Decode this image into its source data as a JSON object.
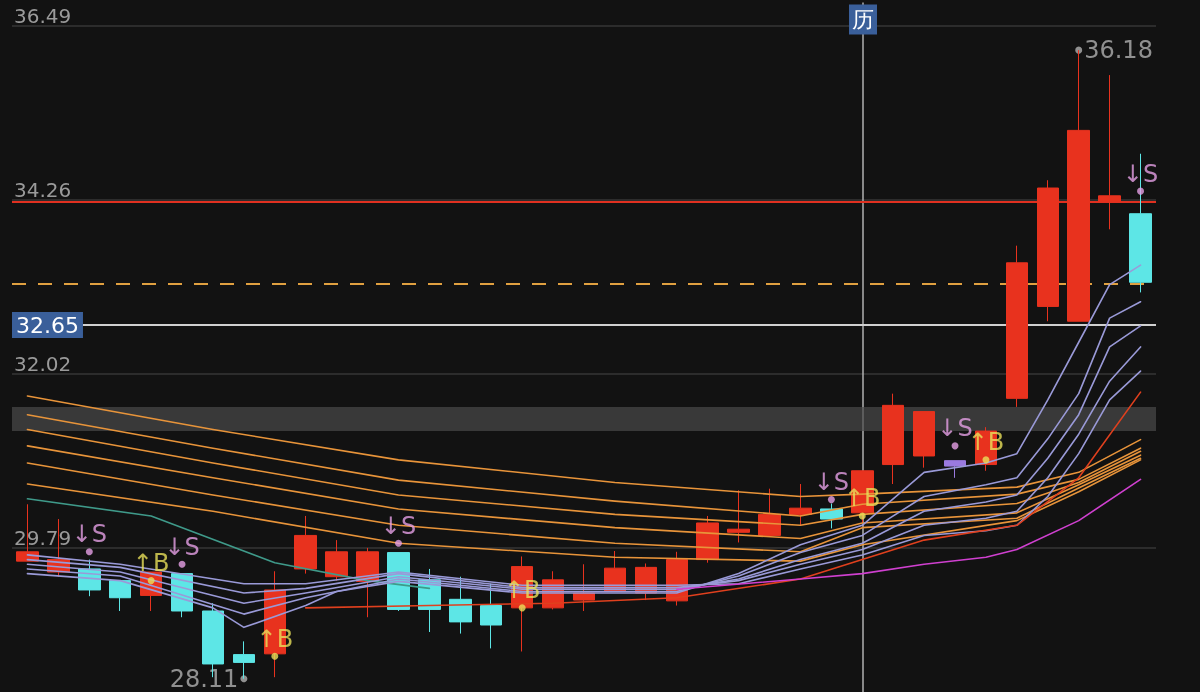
{
  "chart_data": {
    "type": "candlestick",
    "categories": [
      null,
      null,
      null,
      null,
      null,
      null,
      null,
      null,
      null,
      null,
      null,
      null,
      null,
      null,
      null,
      null,
      null,
      null,
      null,
      null,
      null,
      null,
      null,
      null,
      null,
      null,
      null,
      null,
      null,
      null,
      null,
      null,
      null,
      null,
      null,
      null,
      null
    ],
    "ylim": [
      27.94,
      36.49
    ],
    "yticks": [
      29.79,
      32.02,
      34.26,
      36.49
    ],
    "grid": "y",
    "tick_labels": "y",
    "series": [
      {
        "ohlc": [
          [
            29.62,
            30.35,
            29.62,
            29.74
          ],
          [
            29.48,
            30.16,
            29.42,
            29.64
          ],
          [
            29.52,
            29.64,
            29.17,
            29.25
          ],
          [
            29.37,
            29.37,
            28.98,
            29.15
          ],
          [
            29.18,
            29.48,
            28.98,
            29.48
          ],
          [
            29.46,
            29.46,
            28.9,
            28.98
          ],
          [
            28.98,
            29.08,
            28.13,
            28.3
          ],
          [
            28.42,
            28.59,
            28.11,
            28.32
          ],
          [
            28.43,
            29.49,
            28.13,
            29.25
          ],
          [
            29.52,
            30.2,
            29.46,
            29.95
          ],
          [
            29.42,
            29.89,
            29.37,
            29.74
          ],
          [
            29.36,
            29.79,
            28.9,
            29.74
          ],
          [
            29.73,
            29.73,
            28.98,
            29.0
          ],
          [
            29.38,
            29.52,
            28.71,
            29.0
          ],
          [
            29.13,
            29.42,
            28.69,
            28.84
          ],
          [
            29.05,
            29.33,
            28.5,
            28.8
          ],
          [
            29.02,
            29.68,
            28.46,
            29.55
          ],
          [
            29.02,
            29.49,
            29.0,
            29.38
          ],
          [
            29.12,
            29.58,
            28.98,
            29.21
          ],
          [
            29.23,
            29.75,
            29.23,
            29.53
          ],
          [
            29.21,
            29.59,
            29.12,
            29.54
          ],
          [
            29.11,
            29.74,
            29.05,
            29.64
          ],
          [
            29.64,
            30.2,
            29.6,
            30.11
          ],
          [
            29.99,
            30.53,
            29.86,
            30.03
          ],
          [
            29.95,
            30.55,
            29.95,
            30.22
          ],
          [
            30.22,
            30.61,
            30.08,
            30.3
          ],
          [
            30.29,
            30.36,
            30.04,
            30.16
          ],
          [
            30.24,
            30.78,
            30.11,
            30.78
          ],
          [
            30.86,
            31.77,
            30.61,
            31.62
          ],
          [
            30.97,
            31.54,
            30.82,
            31.54
          ],
          [
            30.91,
            30.91,
            30.69,
            30.84
          ],
          [
            30.86,
            31.34,
            30.78,
            31.29
          ],
          [
            31.71,
            33.67,
            31.6,
            33.45
          ],
          [
            32.89,
            34.51,
            32.7,
            34.41
          ],
          [
            32.7,
            36.18,
            32.7,
            35.15
          ],
          [
            34.24,
            35.86,
            33.88,
            34.31
          ],
          [
            34.08,
            34.85,
            33.07,
            33.2
          ]
        ],
        "colors": [
          "#e8321e",
          "#e8321e",
          "#5de6e6",
          "#5de6e6",
          "#e8321e",
          "#5de6e6",
          "#5de6e6",
          "#5de6e6",
          "#e8321e",
          "#e8321e",
          "#e8321e",
          "#e8321e",
          "#5de6e6",
          "#5de6e6",
          "#5de6e6",
          "#5de6e6",
          "#e8321e",
          "#e8321e",
          "#e8321e",
          "#e8321e",
          "#e8321e",
          "#e8321e",
          "#e8321e",
          "#e8321e",
          "#e8321e",
          "#e8321e",
          "#5de6e6",
          "#e8321e",
          "#e8321e",
          "#e8321e",
          "#9a7ae0",
          "#e8321e",
          "#e8321e",
          "#e8321e",
          "#e8321e",
          "#e8321e",
          "#5de6e6"
        ]
      },
      {
        "type": "line",
        "color": "#e8943a",
        "values": [
          31.74,
          null,
          null,
          null,
          null,
          null,
          31.31,
          null,
          null,
          null,
          null,
          null,
          30.92,
          null,
          null,
          null,
          null,
          null,
          null,
          30.63,
          null,
          null,
          null,
          null,
          null,
          30.45,
          null,
          30.48,
          null,
          null,
          null,
          null,
          30.57,
          null,
          30.76,
          null,
          31.18
        ]
      },
      {
        "type": "line",
        "color": "#e8943a",
        "values": [
          31.5,
          null,
          null,
          null,
          null,
          null,
          31.07,
          null,
          null,
          null,
          null,
          null,
          30.66,
          null,
          null,
          null,
          null,
          null,
          null,
          30.39,
          null,
          null,
          null,
          null,
          null,
          30.2,
          null,
          30.35,
          null,
          null,
          null,
          null,
          30.48,
          null,
          30.67,
          null,
          31.07
        ]
      },
      {
        "type": "line",
        "color": "#e8943a",
        "values": [
          31.31,
          null,
          null,
          null,
          null,
          null,
          30.88,
          null,
          null,
          null,
          null,
          null,
          30.47,
          null,
          null,
          null,
          null,
          null,
          null,
          30.22,
          null,
          null,
          null,
          null,
          null,
          30.08,
          null,
          30.22,
          null,
          null,
          null,
          null,
          30.36,
          null,
          30.63,
          null,
          31.03
        ]
      },
      {
        "type": "line",
        "color": "#e8943a",
        "values": [
          31.1,
          null,
          null,
          null,
          null,
          null,
          30.69,
          null,
          null,
          null,
          null,
          null,
          30.29,
          null,
          null,
          null,
          null,
          null,
          null,
          30.05,
          null,
          null,
          null,
          null,
          null,
          29.91,
          null,
          30.11,
          null,
          null,
          null,
          null,
          30.24,
          null,
          30.6,
          null,
          30.98
        ]
      },
      {
        "type": "line",
        "color": "#e8943a",
        "values": [
          30.88,
          null,
          null,
          null,
          null,
          null,
          30.47,
          null,
          null,
          null,
          null,
          null,
          30.08,
          null,
          null,
          null,
          null,
          null,
          null,
          29.85,
          null,
          null,
          null,
          null,
          null,
          29.74,
          null,
          30.05,
          null,
          null,
          null,
          null,
          30.17,
          null,
          30.56,
          null,
          30.94
        ]
      },
      {
        "type": "line",
        "color": "#e8943a",
        "values": [
          30.61,
          null,
          null,
          null,
          null,
          null,
          30.26,
          null,
          null,
          null,
          null,
          null,
          29.85,
          null,
          null,
          null,
          null,
          null,
          null,
          29.67,
          null,
          null,
          null,
          null,
          null,
          29.62,
          null,
          29.83,
          null,
          null,
          null,
          null,
          30.14,
          null,
          30.51,
          null,
          30.92
        ]
      },
      {
        "type": "line",
        "color": "#3f9a8a",
        "values": [
          30.42,
          null,
          null,
          null,
          30.2,
          null,
          null,
          null,
          29.6,
          null,
          null,
          29.37,
          null,
          29.27,
          null,
          null,
          null,
          null,
          null,
          null,
          null,
          null,
          null,
          null,
          null,
          null,
          null,
          null,
          null,
          null,
          null,
          null,
          null,
          null,
          null,
          null,
          null
        ]
      },
      {
        "type": "line",
        "color": "#9a9ad8",
        "values": [
          29.46,
          null,
          null,
          29.37,
          null,
          null,
          29.02,
          28.77,
          null,
          29.05,
          29.23,
          null,
          29.36,
          null,
          null,
          null,
          29.21,
          null,
          null,
          null,
          null,
          29.21,
          null,
          29.46,
          null,
          29.83,
          null,
          30.08,
          null,
          30.76,
          null,
          30.88,
          31.0,
          31.69,
          32.43,
          33.17,
          33.42
        ]
      },
      {
        "type": "line",
        "color": "#9a9ad8",
        "values": [
          29.52,
          null,
          null,
          29.43,
          null,
          null,
          null,
          28.94,
          null,
          29.15,
          null,
          null,
          29.39,
          null,
          null,
          null,
          29.23,
          null,
          null,
          null,
          null,
          29.23,
          null,
          29.43,
          null,
          29.73,
          null,
          29.95,
          null,
          30.45,
          null,
          30.6,
          30.69,
          31.19,
          31.77,
          32.74,
          32.95
        ]
      },
      {
        "type": "line",
        "color": "#9a9ad8",
        "values": [
          29.58,
          null,
          null,
          29.48,
          null,
          null,
          null,
          29.08,
          null,
          29.21,
          null,
          null,
          29.42,
          null,
          null,
          null,
          29.26,
          null,
          null,
          null,
          null,
          29.26,
          null,
          29.39,
          null,
          29.64,
          null,
          29.85,
          null,
          30.26,
          null,
          30.38,
          30.47,
          30.94,
          31.5,
          32.37,
          32.64
        ]
      },
      {
        "type": "line",
        "color": "#9a9ad8",
        "values": [
          29.64,
          null,
          null,
          29.54,
          null,
          null,
          null,
          29.21,
          null,
          29.27,
          null,
          null,
          29.46,
          null,
          null,
          null,
          29.28,
          null,
          null,
          null,
          null,
          29.28,
          null,
          29.37,
          null,
          29.58,
          null,
          29.77,
          null,
          30.08,
          null,
          30.17,
          30.26,
          30.69,
          31.25,
          31.93,
          32.37
        ]
      },
      {
        "type": "line",
        "color": "#9a9ad8",
        "values": [
          29.7,
          null,
          null,
          29.58,
          null,
          null,
          null,
          29.33,
          null,
          29.33,
          null,
          null,
          29.48,
          null,
          null,
          null,
          29.31,
          null,
          null,
          null,
          null,
          29.31,
          null,
          29.33,
          null,
          29.52,
          null,
          29.7,
          null,
          29.95,
          null,
          30.01,
          30.08,
          30.45,
          31.0,
          31.69,
          32.06
        ]
      },
      {
        "type": "line",
        "color": "#e0401e",
        "values": [
          null,
          null,
          null,
          null,
          null,
          null,
          null,
          null,
          null,
          29.02,
          null,
          null,
          null,
          29.05,
          null,
          null,
          null,
          29.08,
          null,
          null,
          null,
          29.15,
          null,
          null,
          null,
          29.39,
          null,
          29.64,
          null,
          29.89,
          null,
          null,
          30.08,
          null,
          30.69,
          null,
          31.79
        ]
      },
      {
        "type": "line",
        "color": "#d040d0",
        "values": [
          null,
          null,
          null,
          null,
          null,
          null,
          null,
          null,
          null,
          null,
          null,
          null,
          null,
          null,
          null,
          null,
          null,
          null,
          null,
          null,
          null,
          29.26,
          null,
          null,
          null,
          29.39,
          null,
          29.46,
          null,
          29.58,
          null,
          29.67,
          29.77,
          null,
          30.14,
          null,
          30.67
        ]
      },
      {
        "type": "scatter",
        "color": "#e6a0e6",
        "values": [
          null,
          null,
          29.74,
          null,
          null,
          29.58,
          null,
          null,
          null,
          null,
          null,
          null,
          29.85,
          null,
          null,
          null,
          null,
          null,
          null,
          null,
          null,
          null,
          null,
          null,
          null,
          null,
          30.41,
          null,
          null,
          null,
          31.1,
          null,
          null,
          null,
          null,
          null,
          34.37
        ],
        "value_labels": [
          null,
          null,
          "↓S",
          null,
          null,
          "↓S",
          null,
          null,
          null,
          null,
          null,
          null,
          "↓S",
          null,
          null,
          null,
          null,
          null,
          null,
          null,
          null,
          null,
          null,
          null,
          null,
          null,
          "↓S",
          null,
          null,
          null,
          "↓S",
          null,
          null,
          null,
          null,
          null,
          "↓S"
        ]
      },
      {
        "type": "scatter",
        "color": "#e8e05a",
        "values": [
          null,
          null,
          null,
          null,
          29.37,
          null,
          null,
          null,
          28.4,
          null,
          null,
          null,
          null,
          null,
          null,
          null,
          29.02,
          null,
          null,
          null,
          null,
          null,
          null,
          null,
          null,
          null,
          null,
          30.2,
          null,
          null,
          null,
          30.92,
          null,
          null,
          null,
          null,
          null
        ],
        "value_labels": [
          null,
          null,
          null,
          null,
          "↑B",
          null,
          null,
          null,
          "↑B",
          null,
          null,
          null,
          null,
          null,
          null,
          null,
          "↑B",
          null,
          null,
          null,
          null,
          null,
          null,
          null,
          null,
          null,
          null,
          "↑B",
          null,
          null,
          null,
          "↑B",
          null,
          null,
          null,
          null,
          null
        ]
      },
      {
        "type": "scatter",
        "color": "#b0b0b0",
        "values": [
          null,
          null,
          null,
          null,
          null,
          null,
          null,
          28.11,
          null,
          null,
          null,
          null,
          null,
          null,
          null,
          null,
          null,
          null,
          null,
          null,
          null,
          null,
          null,
          null,
          null,
          null,
          null,
          null,
          null,
          null,
          null,
          null,
          null,
          null,
          36.18,
          null,
          null
        ],
        "value_labels": [
          null,
          null,
          null,
          null,
          null,
          null,
          null,
          "28.11",
          null,
          null,
          null,
          null,
          null,
          null,
          null,
          null,
          null,
          null,
          null,
          null,
          null,
          null,
          null,
          null,
          null,
          null,
          null,
          null,
          null,
          null,
          null,
          null,
          null,
          null,
          "36.18",
          null,
          null
        ]
      }
    ],
    "ref_lines": [
      {
        "axis": "y",
        "value": 32.65,
        "label": "32.65",
        "color": "#d0d0d0"
      },
      {
        "axis": "y",
        "value": 33.18,
        "color": "#e0a040",
        "line_style": "dashed"
      },
      {
        "axis": "y",
        "value": 34.24,
        "color": "#e03020"
      }
    ],
    "annotations": [
      "历"
    ],
    "bands": [
      {
        "axis": "y",
        "from": 31.29,
        "to": 31.6,
        "color": "#4a4a4a"
      }
    ]
  }
}
